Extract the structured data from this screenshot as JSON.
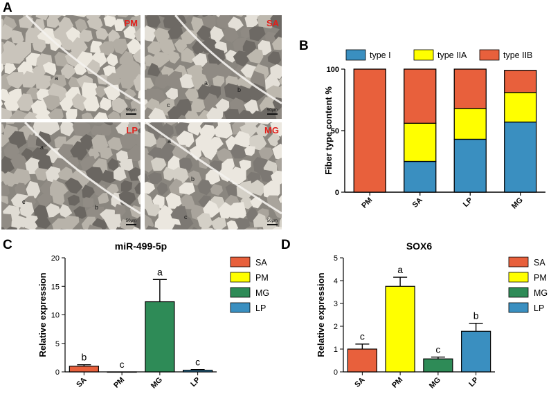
{
  "figure": {
    "panel_labels": {
      "a": "A",
      "b": "B",
      "c": "C",
      "d": "D"
    },
    "micrographs": [
      {
        "tag": "PM",
        "scale_bar": "50μm",
        "fiber_labels": [
          "a"
        ]
      },
      {
        "tag": "SA",
        "scale_bar": "50μm",
        "fiber_labels": [
          "a",
          "b",
          "c"
        ]
      },
      {
        "tag": "LP",
        "scale_bar": "50μm",
        "fiber_labels": [
          "a",
          "c",
          "b"
        ]
      },
      {
        "tag": "MG",
        "scale_bar": "50μm",
        "fiber_labels": [
          "a",
          "b",
          "c"
        ]
      }
    ]
  },
  "chart_data": [
    {
      "panel": "B",
      "type": "bar",
      "stacked": true,
      "title": "",
      "xlabel": "",
      "ylabel": "Fiber type content %",
      "categories": [
        "PM",
        "SA",
        "LP",
        "MG"
      ],
      "series": [
        {
          "name": "type I",
          "color": "#3a8fc0",
          "values": [
            0,
            25,
            43,
            57
          ]
        },
        {
          "name": "type IIA",
          "color": "#ffff00",
          "values": [
            0,
            31,
            25,
            24
          ]
        },
        {
          "name": "type IIB",
          "color": "#e8603c",
          "values": [
            100,
            44,
            32,
            18
          ]
        }
      ],
      "ylim": [
        0,
        100
      ],
      "yticks": [
        0,
        50,
        100
      ],
      "legend": "top",
      "grid": false
    },
    {
      "panel": "C",
      "type": "bar",
      "title": "miR-499-5p",
      "xlabel": "",
      "ylabel": "Relative expression",
      "categories": [
        "SA",
        "PM",
        "MG",
        "LP"
      ],
      "values": [
        1.0,
        0.0,
        12.3,
        0.3
      ],
      "errors": [
        0.25,
        0.0,
        3.9,
        0.1
      ],
      "significance": [
        "b",
        "c",
        "a",
        "c"
      ],
      "colors": [
        "#e8603c",
        "#ffff00",
        "#2e8b57",
        "#3a8fc0"
      ],
      "ylim": [
        0,
        20
      ],
      "yticks": [
        0,
        5,
        10,
        15,
        20
      ],
      "legend": "right",
      "grid": false
    },
    {
      "panel": "D",
      "type": "bar",
      "title": "SOX6",
      "xlabel": "",
      "ylabel": "Relative expression",
      "categories": [
        "SA",
        "PM",
        "MG",
        "LP"
      ],
      "values": [
        1.0,
        3.75,
        0.57,
        1.78
      ],
      "errors": [
        0.22,
        0.4,
        0.08,
        0.35
      ],
      "significance": [
        "c",
        "a",
        "c",
        "b"
      ],
      "colors": [
        "#e8603c",
        "#ffff00",
        "#2e8b57",
        "#3a8fc0"
      ],
      "ylim": [
        0,
        5
      ],
      "yticks": [
        0,
        1,
        2,
        3,
        4,
        5
      ],
      "legend": "right",
      "grid": false
    }
  ]
}
